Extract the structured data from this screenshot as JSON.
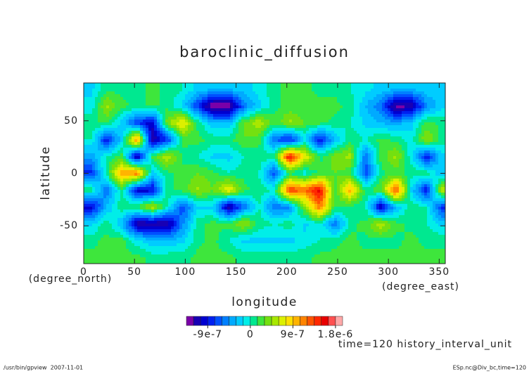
{
  "chart_data": {
    "type": "contour",
    "title": "baroclinic_diffusion",
    "xlabel": "longitude",
    "ylabel": "latitude",
    "xunit": "(degree_east)",
    "yunit": "(degree_north)",
    "x": [
      7.5,
      22.5,
      37.5,
      52.5,
      67.5,
      82.5,
      97.5,
      112.5,
      127.5,
      142.5,
      157.5,
      172.5,
      187.5,
      202.5,
      217.5,
      232.5,
      247.5,
      262.5,
      277.5,
      292.5,
      307.5,
      322.5,
      337.5,
      352.5
    ],
    "y": [
      80,
      64,
      48,
      32,
      16,
      0,
      -16,
      -32,
      -48,
      -64,
      -80
    ],
    "z": [
      [
        -2e-07,
        1e-07,
        1e-07,
        1e-07,
        2e-07,
        1e-07,
        0,
        -2e-07,
        -3e-07,
        -3e-07,
        -2e-07,
        -1e-07,
        1e-07,
        2e-07,
        2e-07,
        1e-07,
        1e-07,
        0,
        -1e-07,
        -2e-07,
        -3e-07,
        -3e-07,
        -2e-07,
        -2e-07
      ],
      [
        -1e-07,
        5e-07,
        2e-07,
        1e-07,
        2e-07,
        1e-07,
        -2e-07,
        -8e-07,
        -1.4e-06,
        -1.4e-06,
        -6e-07,
        -2e-07,
        1e-07,
        2e-07,
        2e-07,
        2e-07,
        2e-07,
        1e-07,
        -3e-07,
        -6e-07,
        -1.3e-06,
        -1.2e-06,
        -5e-07,
        -2e-07
      ],
      [
        1e-07,
        2e-07,
        -2e-07,
        -8e-07,
        -1e-06,
        4e-07,
        8e-07,
        1e-07,
        -3e-07,
        -3e-07,
        3e-07,
        6e-07,
        2e-07,
        5e-07,
        3e-07,
        2e-07,
        1e-07,
        0,
        -2e-07,
        -3e-07,
        -4e-07,
        -2e-07,
        2e-07,
        1e-07
      ],
      [
        0,
        -9e-07,
        -2e-07,
        1.2e-06,
        -1.2e-06,
        -8e-07,
        2e-07,
        2e-07,
        1e-07,
        1e-07,
        3e-07,
        2e-07,
        -6e-07,
        -9e-07,
        -2e-07,
        -9e-07,
        -3e-07,
        1e-07,
        0,
        2e-07,
        1e-07,
        -1e-07,
        5e-07,
        1e-07
      ],
      [
        -4e-07,
        0,
        2e-07,
        -1.2e-06,
        2e-07,
        6e-07,
        1e-07,
        0,
        -2e-07,
        -2e-07,
        0,
        1e-07,
        1e-07,
        1.6e-06,
        8e-07,
        1e-07,
        4e-07,
        5e-07,
        -6e-07,
        2e-07,
        5e-07,
        -1e-07,
        -9e-07,
        -2e-07
      ],
      [
        -8e-07,
        1e-07,
        1e-06,
        1.2e-06,
        -2e-07,
        1e-07,
        2e-07,
        3e-07,
        2e-07,
        0,
        1e-07,
        0,
        -7e-07,
        1e-07,
        -1e-07,
        2e-07,
        3e-07,
        2e-07,
        -7e-07,
        1e-07,
        2e-07,
        1e-07,
        1e-07,
        -3e-07
      ],
      [
        1e-07,
        -6e-07,
        1e-07,
        -1e-06,
        -1e-06,
        1e-07,
        2e-07,
        5e-07,
        3e-07,
        8e-07,
        2e-07,
        1e-07,
        0,
        1.4e-06,
        1.2e-06,
        1.6e-06,
        2e-07,
        1e-06,
        1e-07,
        3e-07,
        1.4e-06,
        -2e-07,
        -9e-07,
        6e-07
      ],
      [
        -1e-06,
        -3e-07,
        1e-07,
        2e-07,
        6e-07,
        0,
        -7e-07,
        -2e-07,
        -2e-07,
        -1.2e-06,
        -6e-07,
        0,
        -6e-07,
        -5e-07,
        4e-07,
        1.2e-06,
        2e-07,
        1e-07,
        0,
        -1.1e-06,
        -3e-07,
        1e-07,
        0,
        -8e-07
      ],
      [
        -2e-07,
        1e-07,
        -3e-07,
        -1.2e-06,
        -1.2e-06,
        -1.2e-06,
        -5e-07,
        1e-07,
        2e-07,
        2e-07,
        5e-07,
        1e-07,
        0,
        1e-07,
        -2e-07,
        0,
        -6e-07,
        1e-07,
        2e-07,
        6e-07,
        2e-07,
        1e-07,
        0,
        -2e-07
      ],
      [
        1e-07,
        2e-07,
        2e-07,
        -1e-07,
        -3e-07,
        -3e-07,
        -2e-07,
        1e-07,
        2e-07,
        0,
        -2e-07,
        -2e-07,
        -2e-07,
        -2e-07,
        -1e-07,
        0,
        1e-07,
        2e-07,
        1e-07,
        1e-07,
        1e-07,
        2e-07,
        1e-07,
        1e-07
      ],
      [
        2e-07,
        2e-07,
        2e-07,
        2e-07,
        1e-07,
        1e-07,
        1e-07,
        2e-07,
        2e-07,
        2e-07,
        1e-07,
        1e-07,
        1e-07,
        1e-07,
        1e-07,
        2e-07,
        2e-07,
        2e-07,
        2e-07,
        2e-07,
        2e-07,
        2e-07,
        2e-07,
        2e-07
      ]
    ],
    "xlim": [
      0,
      356
    ],
    "ylim": [
      -86,
      86
    ],
    "xticks": [
      0,
      50,
      100,
      150,
      200,
      250,
      300,
      350
    ],
    "yticks": [
      -50,
      0,
      50
    ],
    "levels": [
      -1.35e-06,
      -1.2e-06,
      -1.05e-06,
      -9e-07,
      -7.5e-07,
      -6e-07,
      -4.5e-07,
      -3e-07,
      -1.5e-07,
      0,
      1.5e-07,
      3e-07,
      4.5e-07,
      6e-07,
      7.5e-07,
      9e-07,
      1.05e-06,
      1.2e-06,
      1.35e-06,
      1.5e-06,
      1.65e-06,
      1.8e-06,
      1.95e-06
    ],
    "colors": [
      "#7a00a8",
      "#1800b4",
      "#0000d0",
      "#0020f0",
      "#0050ff",
      "#0080ff",
      "#00aaff",
      "#00ccff",
      "#00eee8",
      "#00e890",
      "#3ee63c",
      "#74e010",
      "#a8e800",
      "#dcf000",
      "#ffe000",
      "#ffb400",
      "#ff8400",
      "#ff5400",
      "#ff2800",
      "#e80000",
      "#ff5050",
      "#ffa8a8"
    ],
    "colorbar_ticks": [
      -9e-07,
      0,
      9e-07,
      {
        "value": 1.8e-06,
        "label": "1.8e-6"
      }
    ],
    "annotation": "time=120 history_interval_unit"
  },
  "footer": {
    "left": "/usr/bin/gpview  2007-11-01",
    "right": "ESp.nc@Div_bc,time=120"
  }
}
